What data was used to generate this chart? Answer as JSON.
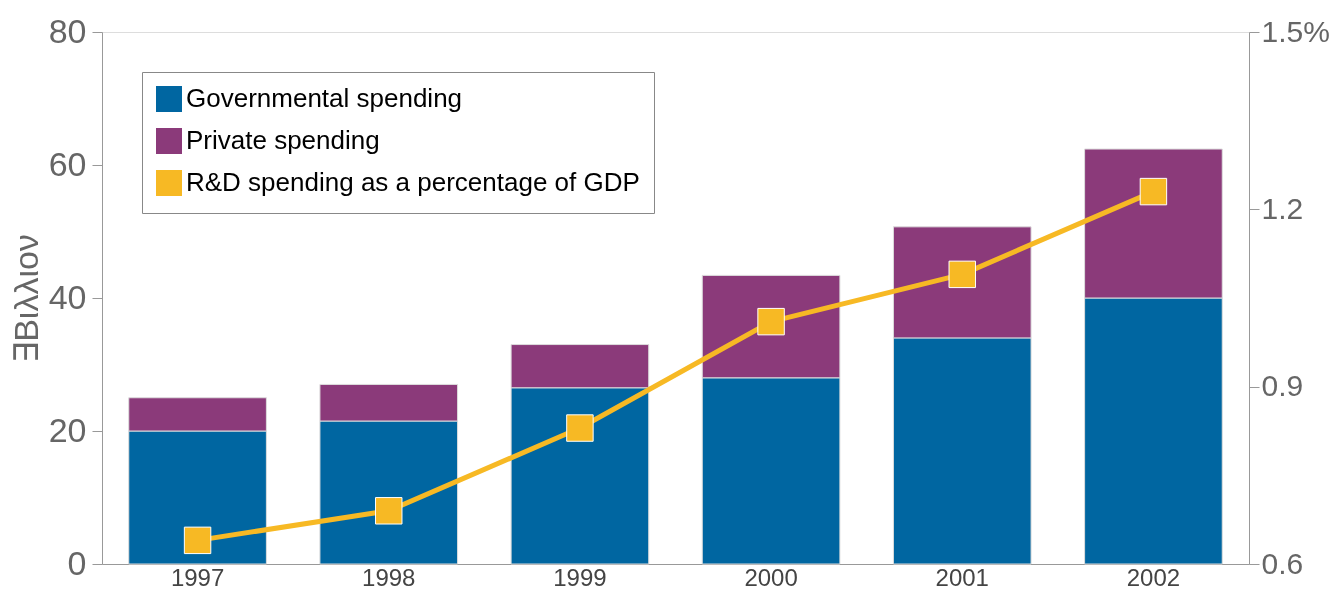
{
  "chart_data": {
    "type": "bar",
    "stacked": true,
    "ylabel": "∃Βιλλιον",
    "categories": [
      "1997",
      "1998",
      "1999",
      "2000",
      "2001",
      "2002"
    ],
    "series": [
      {
        "name": "Governmental spending",
        "color": "#0066a1",
        "values": [
          20,
          21.5,
          26.5,
          28,
          34,
          40
        ]
      },
      {
        "name": "Private spending",
        "color": "#8b3a7a",
        "values": [
          5,
          5.5,
          6.5,
          15.4,
          16.7,
          22.4
        ]
      },
      {
        "name": "R&D spending as a percentage of GDP",
        "color": "#f7b924",
        "type": "line",
        "axis": "y2",
        "marker": "square",
        "line_style": "solid",
        "values": [
          0.64,
          0.69,
          0.83,
          1.01,
          1.09,
          1.23
        ]
      }
    ],
    "ylim": [
      0,
      80
    ],
    "yticks": [
      0,
      20,
      40,
      60,
      80
    ],
    "y2lim": [
      0.6,
      1.5
    ],
    "y2ticks": [
      0.6,
      0.9,
      1.2,
      {
        "value": 1.5,
        "label": "1.5%"
      }
    ],
    "grid": false,
    "legend": "top left"
  }
}
